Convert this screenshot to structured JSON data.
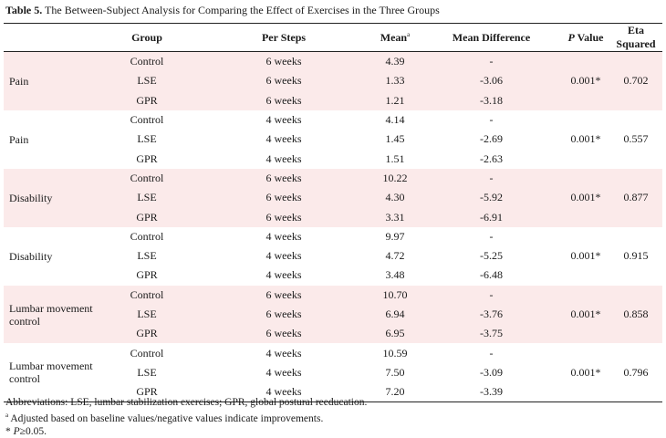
{
  "caption": {
    "label": "Table 5.",
    "text": " The Between-Subject Analysis for Comparing the Effect of Exercises in the Three Groups"
  },
  "table": {
    "headers": {
      "measure": "",
      "group": "Group",
      "per_steps": "Per Steps",
      "mean": "Mean",
      "mean_sup": "a",
      "mean_diff": "Mean Difference",
      "p_italic": "P",
      "p_rest": " Value",
      "eta": "Eta Squared"
    },
    "blocks": [
      {
        "measure": "Pain",
        "p_value": "0.001*",
        "eta_squared": "0.702",
        "rows": [
          {
            "group": "Control",
            "per_steps": "6 weeks",
            "mean": "4.39",
            "mean_difference": "-"
          },
          {
            "group": "LSE",
            "per_steps": "6 weeks",
            "mean": "1.33",
            "mean_difference": "-3.06"
          },
          {
            "group": "GPR",
            "per_steps": "6 weeks",
            "mean": "1.21",
            "mean_difference": "-3.18"
          }
        ]
      },
      {
        "measure": "Pain",
        "p_value": "0.001*",
        "eta_squared": "0.557",
        "rows": [
          {
            "group": "Control",
            "per_steps": "4 weeks",
            "mean": "4.14",
            "mean_difference": "-"
          },
          {
            "group": "LSE",
            "per_steps": "4 weeks",
            "mean": "1.45",
            "mean_difference": "-2.69"
          },
          {
            "group": "GPR",
            "per_steps": "4 weeks",
            "mean": "1.51",
            "mean_difference": "-2.63"
          }
        ]
      },
      {
        "measure": "Disability",
        "p_value": "0.001*",
        "eta_squared": "0.877",
        "rows": [
          {
            "group": "Control",
            "per_steps": "6 weeks",
            "mean": "10.22",
            "mean_difference": "-"
          },
          {
            "group": "LSE",
            "per_steps": "6 weeks",
            "mean": "4.30",
            "mean_difference": "-5.92"
          },
          {
            "group": "GPR",
            "per_steps": "6 weeks",
            "mean": "3.31",
            "mean_difference": "-6.91"
          }
        ]
      },
      {
        "measure": "Disability",
        "p_value": "0.001*",
        "eta_squared": "0.915",
        "rows": [
          {
            "group": "Control",
            "per_steps": "4 weeks",
            "mean": "9.97",
            "mean_difference": "-"
          },
          {
            "group": "LSE",
            "per_steps": "4 weeks",
            "mean": "4.72",
            "mean_difference": "-5.25"
          },
          {
            "group": "GPR",
            "per_steps": "4 weeks",
            "mean": "3.48",
            "mean_difference": "-6.48"
          }
        ]
      },
      {
        "measure": "Lumbar movement control",
        "p_value": "0.001*",
        "eta_squared": "0.858",
        "rows": [
          {
            "group": "Control",
            "per_steps": "6 weeks",
            "mean": "10.70",
            "mean_difference": "-"
          },
          {
            "group": "LSE",
            "per_steps": "6 weeks",
            "mean": "6.94",
            "mean_difference": "-3.76"
          },
          {
            "group": "GPR",
            "per_steps": "6 weeks",
            "mean": "6.95",
            "mean_difference": "-3.75"
          }
        ]
      },
      {
        "measure": "Lumbar movement control",
        "p_value": "0.001*",
        "eta_squared": "0.796",
        "rows": [
          {
            "group": "Control",
            "per_steps": "4 weeks",
            "mean": "10.59",
            "mean_difference": "-"
          },
          {
            "group": "LSE",
            "per_steps": "4 weeks",
            "mean": "7.50",
            "mean_difference": "-3.09"
          },
          {
            "group": "GPR",
            "per_steps": "4 weeks",
            "mean": "7.20",
            "mean_difference": "-3.39"
          }
        ]
      }
    ]
  },
  "footnotes": {
    "abbreviations": "Abbreviations: LSE, lumbar stabilization exercises; GPR, global postural reeducation.",
    "a_sup": "a",
    "a_text": " Adjusted based on baseline values/negative values indicate improvements.",
    "star": "* ",
    "p_italic": "P",
    "p_rest": "≥0.05."
  },
  "colors": {
    "shade": "#fbeaea",
    "rule": "#222222"
  }
}
